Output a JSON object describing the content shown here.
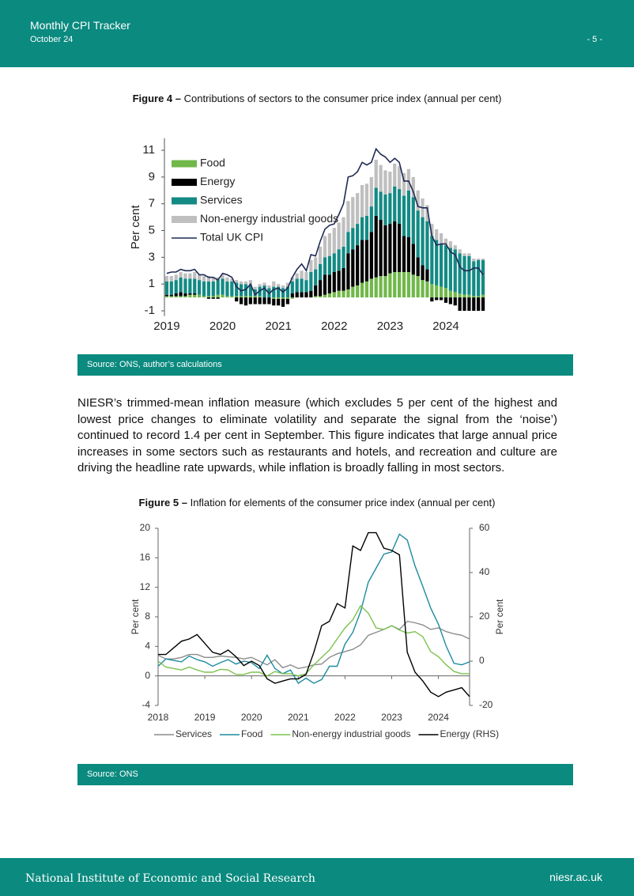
{
  "header": {
    "title": "Monthly CPI Tracker",
    "date": "October 24",
    "page": "- 5 -"
  },
  "chart_data": [
    {
      "type": "bar",
      "stacked": true,
      "figure_label": "Figure 4 –",
      "title": "Contributions of sectors to the consumer price index (annual per cent)",
      "y_label": "Per cent",
      "source": "Source: ONS, author’s calculations",
      "categories": [
        "2019",
        null,
        null,
        null,
        null,
        null,
        null,
        null,
        null,
        null,
        null,
        null,
        "2020",
        null,
        null,
        null,
        null,
        null,
        null,
        null,
        null,
        null,
        null,
        null,
        "2021",
        null,
        null,
        null,
        null,
        null,
        null,
        null,
        null,
        null,
        null,
        null,
        "2022",
        null,
        null,
        null,
        null,
        null,
        null,
        null,
        null,
        null,
        null,
        null,
        "2023",
        null,
        null,
        null,
        null,
        null,
        null,
        null,
        null,
        null,
        null,
        null,
        "2024",
        null,
        null,
        null,
        null,
        null,
        null,
        null,
        null
      ],
      "ylim": [
        -1.4,
        11.9
      ],
      "yticks": [
        -1,
        1,
        3,
        5,
        7,
        9,
        11
      ],
      "legend": "top-left",
      "series": [
        {
          "name": "Food",
          "color": "#71b84a",
          "values": [
            0.1,
            0.1,
            0.1,
            0.1,
            0.1,
            0.2,
            0.2,
            0.2,
            0.1,
            0.1,
            0.1,
            0.2,
            0.2,
            0.1,
            0.1,
            0.1,
            0.1,
            0.1,
            0.1,
            0.1,
            0.1,
            0.0,
            0.0,
            -0.1,
            -0.1,
            -0.1,
            -0.1,
            -0.1,
            0.0,
            0.0,
            0.0,
            0.0,
            0.1,
            0.1,
            0.2,
            0.3,
            0.4,
            0.5,
            0.5,
            0.6,
            0.8,
            0.9,
            1.1,
            1.2,
            1.4,
            1.5,
            1.6,
            1.6,
            1.8,
            1.9,
            1.9,
            1.9,
            1.9,
            1.7,
            1.6,
            1.3,
            1.2,
            1.0,
            0.9,
            0.8,
            0.7,
            0.5,
            0.4,
            0.3,
            0.2,
            0.2,
            0.1,
            0.1,
            0.2
          ]
        },
        {
          "name": "Energy",
          "color": "#000000",
          "values": [
            0.1,
            0.1,
            0.2,
            0.3,
            0.2,
            0.1,
            0.1,
            0.0,
            0.0,
            -0.1,
            -0.1,
            -0.1,
            0.0,
            0.0,
            0.0,
            -0.3,
            -0.5,
            -0.6,
            -0.5,
            -0.5,
            -0.5,
            -0.5,
            -0.5,
            -0.5,
            -0.5,
            -0.6,
            -0.4,
            0.3,
            0.4,
            0.4,
            0.4,
            0.5,
            0.8,
            1.2,
            1.5,
            1.4,
            1.5,
            1.5,
            1.7,
            2.7,
            2.8,
            3.0,
            3.2,
            3.1,
            3.5,
            4.6,
            4.2,
            3.8,
            3.7,
            3.8,
            3.6,
            2.7,
            2.6,
            2.3,
            1.4,
            1.1,
            0.9,
            -0.3,
            -0.2,
            -0.2,
            -0.4,
            -0.5,
            -0.6,
            -1.0,
            -1.0,
            -1.0,
            -1.0,
            -1.0,
            -1.0
          ]
        },
        {
          "name": "Services",
          "color": "#138a84",
          "values": [
            1.0,
            1.0,
            1.0,
            1.1,
            1.1,
            1.1,
            1.1,
            1.1,
            1.1,
            1.1,
            1.1,
            1.1,
            1.2,
            1.1,
            1.1,
            1.0,
            0.9,
            0.9,
            0.8,
            0.5,
            0.7,
            0.9,
            0.7,
            0.8,
            0.8,
            0.7,
            0.8,
            0.9,
            1.0,
            1.0,
            0.9,
            1.4,
            1.2,
            1.2,
            1.3,
            1.4,
            1.4,
            1.6,
            1.6,
            1.6,
            1.6,
            1.6,
            1.7,
            1.8,
            1.9,
            2.1,
            2.1,
            2.3,
            2.3,
            2.6,
            2.6,
            3.0,
            3.5,
            3.5,
            3.5,
            3.6,
            3.6,
            3.6,
            3.4,
            3.2,
            3.2,
            3.2,
            3.2,
            3.0,
            2.9,
            2.9,
            2.6,
            2.7,
            2.6
          ]
        },
        {
          "name": "Non-energy industrial goods",
          "color": "#bfbfbf",
          "values": [
            0.4,
            0.4,
            0.4,
            0.4,
            0.4,
            0.4,
            0.5,
            0.4,
            0.4,
            0.4,
            0.3,
            0.2,
            0.3,
            0.3,
            0.2,
            0.2,
            0.2,
            0.2,
            0.4,
            0.2,
            0.2,
            0.2,
            0.2,
            0.4,
            0.2,
            0.2,
            0.3,
            0.3,
            0.4,
            0.6,
            0.6,
            0.9,
            0.9,
            1.3,
            1.6,
            1.7,
            1.9,
            2.0,
            2.2,
            2.3,
            2.3,
            2.3,
            2.4,
            2.4,
            2.2,
            2.1,
            2.0,
            1.8,
            1.6,
            1.7,
            1.7,
            1.7,
            1.6,
            1.5,
            1.5,
            1.4,
            1.2,
            0.9,
            0.8,
            0.8,
            0.5,
            0.5,
            0.3,
            0.3,
            0.2,
            0.2,
            0.2,
            0.1,
            0.1
          ]
        },
        {
          "name": "Total UK CPI",
          "type": "line",
          "color": "#1f2a55",
          "values": [
            1.8,
            1.9,
            1.9,
            2.1,
            2.0,
            2.0,
            2.1,
            1.7,
            1.7,
            1.5,
            1.5,
            1.3,
            1.8,
            1.7,
            1.5,
            0.8,
            0.5,
            0.6,
            1.0,
            0.2,
            0.5,
            0.7,
            0.3,
            0.6,
            0.7,
            0.4,
            0.7,
            1.5,
            2.1,
            2.5,
            2.0,
            3.2,
            3.1,
            4.2,
            5.1,
            5.4,
            5.5,
            6.2,
            7.0,
            9.0,
            9.1,
            9.4,
            10.1,
            9.9,
            10.1,
            11.1,
            10.7,
            10.5,
            10.1,
            10.4,
            10.1,
            8.7,
            8.7,
            7.9,
            6.8,
            6.7,
            6.7,
            4.6,
            3.9,
            4.0,
            4.0,
            3.4,
            3.2,
            2.3,
            2.0,
            2.0,
            2.2,
            2.2,
            1.7
          ]
        }
      ]
    },
    {
      "type": "line",
      "figure_label": "Figure 5 –",
      "title": "Inflation for elements of the consumer price index (annual per cent)",
      "y_label": "Per cent",
      "y2_label": "Per cent",
      "source": "Source: ONS",
      "categories": [
        "2018",
        null,
        null,
        null,
        null,
        null,
        "2019",
        null,
        null,
        null,
        null,
        null,
        "2020",
        null,
        null,
        null,
        null,
        null,
        "2021",
        null,
        null,
        null,
        null,
        null,
        "2022",
        null,
        null,
        null,
        null,
        null,
        "2023",
        null,
        null,
        null,
        null,
        null,
        "2024",
        null,
        null,
        null,
        null
      ],
      "ylim": [
        -4,
        20
      ],
      "yticks": [
        -4,
        0,
        4,
        8,
        12,
        16,
        20
      ],
      "y2lim": [
        -20,
        60
      ],
      "y2ticks": [
        -20,
        0,
        20,
        40,
        60
      ],
      "legend": "bottom",
      "series": [
        {
          "name": "Services",
          "color": "#8c8c8c",
          "values": [
            2.8,
            2.3,
            2.3,
            2.5,
            2.9,
            2.9,
            2.5,
            2.5,
            2.7,
            2.6,
            2.5,
            2.3,
            2.5,
            2.0,
            1.5,
            2.2,
            1.1,
            1.5,
            1.0,
            1.2,
            1.5,
            1.6,
            2.5,
            3.0,
            3.3,
            3.6,
            4.2,
            5.5,
            5.9,
            6.3,
            6.8,
            6.3,
            7.4,
            7.2,
            6.9,
            6.3,
            6.5,
            6.0,
            5.7,
            5.5,
            5.0
          ]
        },
        {
          "name": "Food",
          "color": "#1d8aa0",
          "values": [
            1.3,
            2.3,
            2.1,
            1.9,
            2.7,
            2.2,
            1.9,
            1.3,
            1.8,
            2.2,
            1.6,
            2.0,
            1.8,
            1.0,
            2.8,
            1.0,
            0.3,
            0.8,
            -1.0,
            -0.3,
            -1.0,
            -0.5,
            1.3,
            1.3,
            4.3,
            5.9,
            8.7,
            12.7,
            14.6,
            16.5,
            16.8,
            19.2,
            18.4,
            14.9,
            12.1,
            9.2,
            7.0,
            4.0,
            1.7,
            1.5,
            1.9
          ]
        },
        {
          "name": "Non-energy industrial goods",
          "color": "#7cc24f",
          "values": [
            2.0,
            1.2,
            1.0,
            0.8,
            1.2,
            0.8,
            0.5,
            0.5,
            0.9,
            0.8,
            0.2,
            0.2,
            0.5,
            0.5,
            0.0,
            0.6,
            0.3,
            0.3,
            0.0,
            0.3,
            1.5,
            2.5,
            3.5,
            5.0,
            6.5,
            7.6,
            9.5,
            8.5,
            6.5,
            6.3,
            6.8,
            6.2,
            5.8,
            6.0,
            5.3,
            3.3,
            2.6,
            1.5,
            0.6,
            0.3,
            0.3
          ]
        },
        {
          "name": "Energy (RHS)",
          "color": "#000000",
          "axis": "y2",
          "values": [
            3,
            3,
            6,
            9,
            10,
            12,
            8,
            4,
            3,
            5,
            2,
            -2,
            0,
            -2,
            -8,
            -10,
            -9,
            -8,
            -8,
            -6,
            4,
            16,
            18,
            26,
            24,
            52,
            50,
            58,
            58,
            51,
            50,
            48,
            4,
            -5,
            -9,
            -14,
            -16,
            -14,
            -13,
            -12,
            -16
          ]
        }
      ]
    }
  ],
  "paragraph": "NIESR’s trimmed-mean inflation measure (which excludes 5 per cent of the highest and lowest price changes to eliminate volatility and separate the signal from the ‘noise’) continued to record 1.4 per cent in September. This figure indicates that large annual price increases in some sectors such as restaurants and hotels, and recreation and culture are driving the headline rate upwards, while inflation is broadly falling in most sectors.",
  "footer": {
    "organisation": "National Institute of Economic and Social Research",
    "url": "niesr.ac.uk"
  }
}
